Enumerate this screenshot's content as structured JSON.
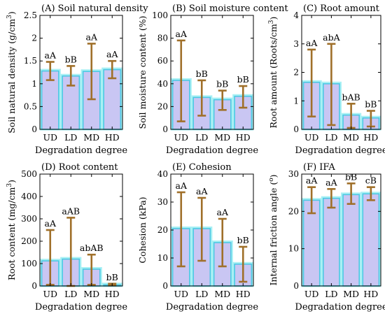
{
  "colors": {
    "bar_fill": "#c9c6f3",
    "bar_glow": "#a8f0f4",
    "bar_edge": "#4dc8e3",
    "error_bar": "#a0702a",
    "axis": "#000000"
  },
  "chart_data": [
    {
      "type": "bar",
      "title": "(A) Soil natural density",
      "ylabel": "Soil natural density (g/cm",
      "ylabel_sup": "3",
      "ylabel_close": ")",
      "xlabel": "Degradation degree",
      "categories": [
        "UD",
        "LD",
        "MD",
        "HD"
      ],
      "values": [
        1.28,
        1.17,
        1.27,
        1.31
      ],
      "error_low": [
        1.08,
        0.96,
        0.66,
        1.12
      ],
      "error_high": [
        1.48,
        1.39,
        1.88,
        1.5
      ],
      "significance": [
        "aA",
        "bB",
        "aA",
        "aA"
      ],
      "ylim": [
        0,
        2.5
      ],
      "yticks": [
        0,
        0.5,
        1,
        1.5,
        2,
        2.5
      ],
      "ytick_labels": [
        "0",
        "0.5",
        "1",
        "1.5",
        "2",
        "2.5"
      ]
    },
    {
      "type": "bar",
      "title": "(B) Soil moisture content",
      "ylabel": "Soil moisture content (%)",
      "xlabel": "Degradation degree",
      "categories": [
        "UD",
        "LD",
        "MD",
        "HD"
      ],
      "values": [
        43,
        28,
        26,
        29
      ],
      "error_low": [
        7,
        12,
        17,
        19
      ],
      "error_high": [
        78,
        43,
        34,
        38
      ],
      "significance": [
        "aA",
        "bB",
        "bB",
        "bB"
      ],
      "ylim": [
        0,
        100
      ],
      "yticks": [
        0,
        20,
        40,
        60,
        80,
        100
      ],
      "ytick_labels": [
        "0",
        "20",
        "40",
        "60",
        "80",
        "100"
      ]
    },
    {
      "type": "bar",
      "title": "(C) Root amount",
      "ylabel": "Root amount (Roots/cm",
      "ylabel_sup": "3",
      "ylabel_close": ")",
      "xlabel": "Degradation degree",
      "categories": [
        "UD",
        "LD",
        "MD",
        "HD"
      ],
      "values": [
        1.65,
        1.6,
        0.5,
        0.4
      ],
      "error_low": [
        0.45,
        0.15,
        0.05,
        0.1
      ],
      "error_high": [
        2.8,
        3.0,
        0.9,
        0.65
      ],
      "significance": [
        "aA",
        "abA",
        "bAB",
        "bB"
      ],
      "ylim": [
        0,
        4
      ],
      "yticks": [
        0,
        1,
        2,
        3,
        4
      ],
      "ytick_labels": [
        "0",
        "1",
        "2",
        "3",
        "4"
      ]
    },
    {
      "type": "bar",
      "title": "(D) Root content",
      "ylabel": "Root content (mg/cm",
      "ylabel_sup": "3",
      "ylabel_close": ")",
      "xlabel": "Degradation degree",
      "categories": [
        "UD",
        "LD",
        "MD",
        "HD"
      ],
      "values": [
        112,
        120,
        75,
        5
      ],
      "error_low": [
        5,
        0,
        5,
        2
      ],
      "error_high": [
        250,
        305,
        140,
        10
      ],
      "significance": [
        "aA",
        "aAB",
        "abAB",
        "bB"
      ],
      "ylim": [
        0,
        500
      ],
      "yticks": [
        0,
        100,
        200,
        300,
        400,
        500
      ],
      "ytick_labels": [
        "0",
        "100",
        "200",
        "300",
        "400",
        "500"
      ]
    },
    {
      "type": "bar",
      "title": "(E) Cohesion",
      "ylabel": "Cohesion (kPa)",
      "xlabel": "Degradation degree",
      "categories": [
        "UD",
        "LD",
        "MD",
        "HD"
      ],
      "values": [
        20.5,
        20.5,
        15.5,
        7.8
      ],
      "error_low": [
        7,
        9,
        7,
        1.5
      ],
      "error_high": [
        33.5,
        31.5,
        24,
        14
      ],
      "significance": [
        "aA",
        "aA",
        "aA",
        "bB"
      ],
      "ylim": [
        0,
        40
      ],
      "yticks": [
        0,
        10,
        20,
        30,
        40
      ],
      "ytick_labels": [
        "0",
        "10",
        "20",
        "30",
        "40"
      ]
    },
    {
      "type": "bar",
      "title": "(F) IFA",
      "ylabel": "Internal friction angle (",
      "ylabel_sup": "o",
      "ylabel_close": ")",
      "xlabel": "Degradation degree",
      "categories": [
        "UD",
        "LD",
        "MD",
        "HD"
      ],
      "values": [
        23,
        23.5,
        24.5,
        24.7
      ],
      "error_low": [
        19.5,
        21,
        22,
        23
      ],
      "error_high": [
        26.5,
        26,
        27.5,
        26.5
      ],
      "significance": [
        "aA",
        "aA",
        "bB",
        "cB"
      ],
      "ylim": [
        0,
        30
      ],
      "yticks": [
        0,
        10,
        20,
        30
      ],
      "ytick_labels": [
        "0",
        "10",
        "20",
        "30"
      ]
    }
  ]
}
